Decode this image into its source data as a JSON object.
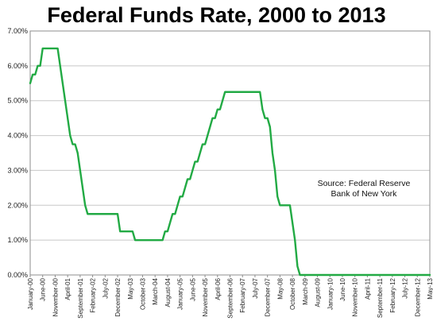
{
  "chart_data": {
    "type": "line",
    "title": "Federal Funds Rate, 2000 to 2013",
    "xlabel": "",
    "ylabel": "",
    "ylim": [
      0,
      7
    ],
    "yticks": [
      "0.00%",
      "1.00%",
      "2.00%",
      "3.00%",
      "4.00%",
      "5.00%",
      "6.00%",
      "7.00%"
    ],
    "xticks": [
      "January-00",
      "June-00",
      "November-00",
      "April-01",
      "September-01",
      "February-02",
      "July-02",
      "December-02",
      "May-03",
      "October-03",
      "March-04",
      "August-04",
      "January-05",
      "June-05",
      "November-05",
      "April-06",
      "September-06",
      "February-07",
      "July-07",
      "December-07",
      "May-08",
      "October-08",
      "March-09",
      "August-09",
      "January-10",
      "June-10",
      "November-10",
      "April-11",
      "September-11",
      "February-12",
      "July-12",
      "December-12",
      "May-13"
    ],
    "grid": true,
    "line_color": "#22aa44",
    "annotation_lines": [
      "Source: Federal Reserve",
      "Bank of New York"
    ],
    "series": [
      {
        "values": [
          [
            0,
            5.5
          ],
          [
            1,
            5.75
          ],
          [
            2,
            5.75
          ],
          [
            3,
            6.0
          ],
          [
            4,
            6.0
          ],
          [
            5,
            6.5
          ],
          [
            6,
            6.5
          ],
          [
            7,
            6.5
          ],
          [
            8,
            6.5
          ],
          [
            9,
            6.5
          ],
          [
            10,
            6.5
          ],
          [
            11,
            6.5
          ],
          [
            12,
            6.0
          ],
          [
            13,
            5.5
          ],
          [
            14,
            5.0
          ],
          [
            15,
            4.5
          ],
          [
            16,
            4.0
          ],
          [
            17,
            3.75
          ],
          [
            18,
            3.75
          ],
          [
            19,
            3.5
          ],
          [
            20,
            3.0
          ],
          [
            21,
            2.5
          ],
          [
            22,
            2.0
          ],
          [
            23,
            1.75
          ],
          [
            35,
            1.75
          ],
          [
            36,
            1.25
          ],
          [
            41,
            1.25
          ],
          [
            42,
            1.0
          ],
          [
            53,
            1.0
          ],
          [
            54,
            1.25
          ],
          [
            55,
            1.25
          ],
          [
            56,
            1.5
          ],
          [
            57,
            1.75
          ],
          [
            58,
            1.75
          ],
          [
            59,
            2.0
          ],
          [
            60,
            2.25
          ],
          [
            61,
            2.25
          ],
          [
            62,
            2.5
          ],
          [
            63,
            2.75
          ],
          [
            64,
            2.75
          ],
          [
            65,
            3.0
          ],
          [
            66,
            3.25
          ],
          [
            67,
            3.25
          ],
          [
            68,
            3.5
          ],
          [
            69,
            3.75
          ],
          [
            70,
            3.75
          ],
          [
            71,
            4.0
          ],
          [
            72,
            4.25
          ],
          [
            73,
            4.5
          ],
          [
            74,
            4.5
          ],
          [
            75,
            4.75
          ],
          [
            76,
            4.75
          ],
          [
            77,
            5.0
          ],
          [
            78,
            5.25
          ],
          [
            92,
            5.25
          ],
          [
            93,
            4.75
          ],
          [
            94,
            4.5
          ],
          [
            95,
            4.5
          ],
          [
            96,
            4.25
          ],
          [
            97,
            3.5
          ],
          [
            98,
            3.0
          ],
          [
            99,
            2.25
          ],
          [
            100,
            2.0
          ],
          [
            104,
            2.0
          ],
          [
            105,
            1.5
          ],
          [
            106,
            1.0
          ],
          [
            107,
            0.25
          ],
          [
            108,
            0.0
          ],
          [
            160,
            0.0
          ]
        ]
      }
    ]
  }
}
